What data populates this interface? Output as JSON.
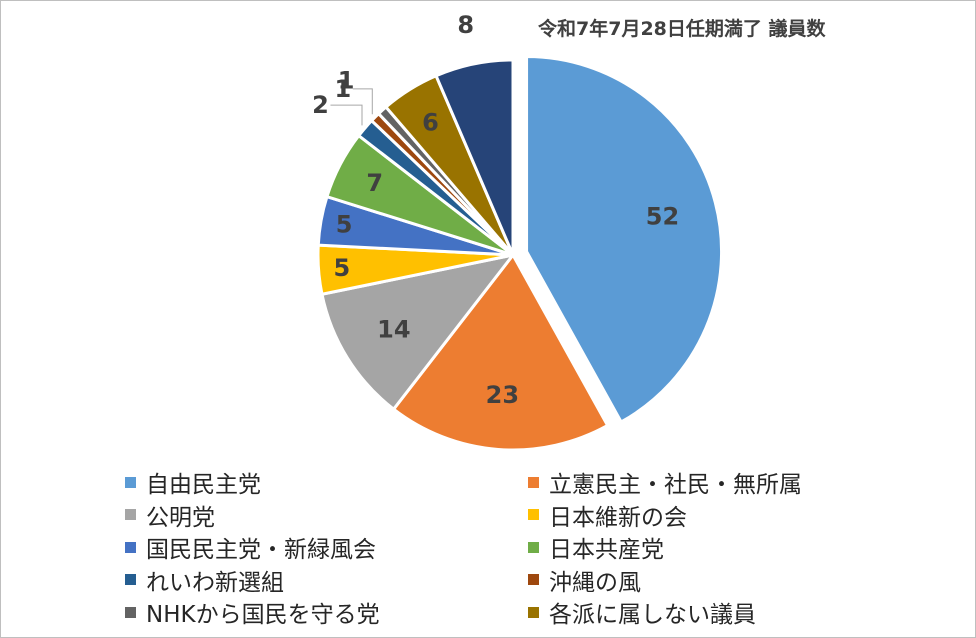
{
  "chart_data": {
    "type": "pie",
    "title": "令和7年7月28日任期満了 議員数",
    "slices": [
      {
        "label": "自由民主党",
        "value": 52,
        "color": "#5b9bd5"
      },
      {
        "label": "立憲民主・社民・無所属",
        "value": 23,
        "color": "#ed7d31"
      },
      {
        "label": "公明党",
        "value": 14,
        "color": "#a5a5a5"
      },
      {
        "label": "日本維新の会",
        "value": 5,
        "color": "#ffc000"
      },
      {
        "label": "国民民主党・新緑風会",
        "value": 5,
        "color": "#4472c4"
      },
      {
        "label": "日本共産党",
        "value": 7,
        "color": "#70ad47"
      },
      {
        "label": "れいわ新選組",
        "value": 2,
        "color": "#255e91"
      },
      {
        "label": "沖縄の風",
        "value": 1,
        "color": "#9e480e"
      },
      {
        "label": "NHKから国民を守る党",
        "value": 1,
        "color": "#636363"
      },
      {
        "label": "各派に属しない議員",
        "value": 6,
        "color": "#997300"
      },
      {
        "label": "",
        "value": 8,
        "color": "#264478"
      }
    ],
    "legend_position": "bottom",
    "exploded_slice": "自由民主党"
  }
}
